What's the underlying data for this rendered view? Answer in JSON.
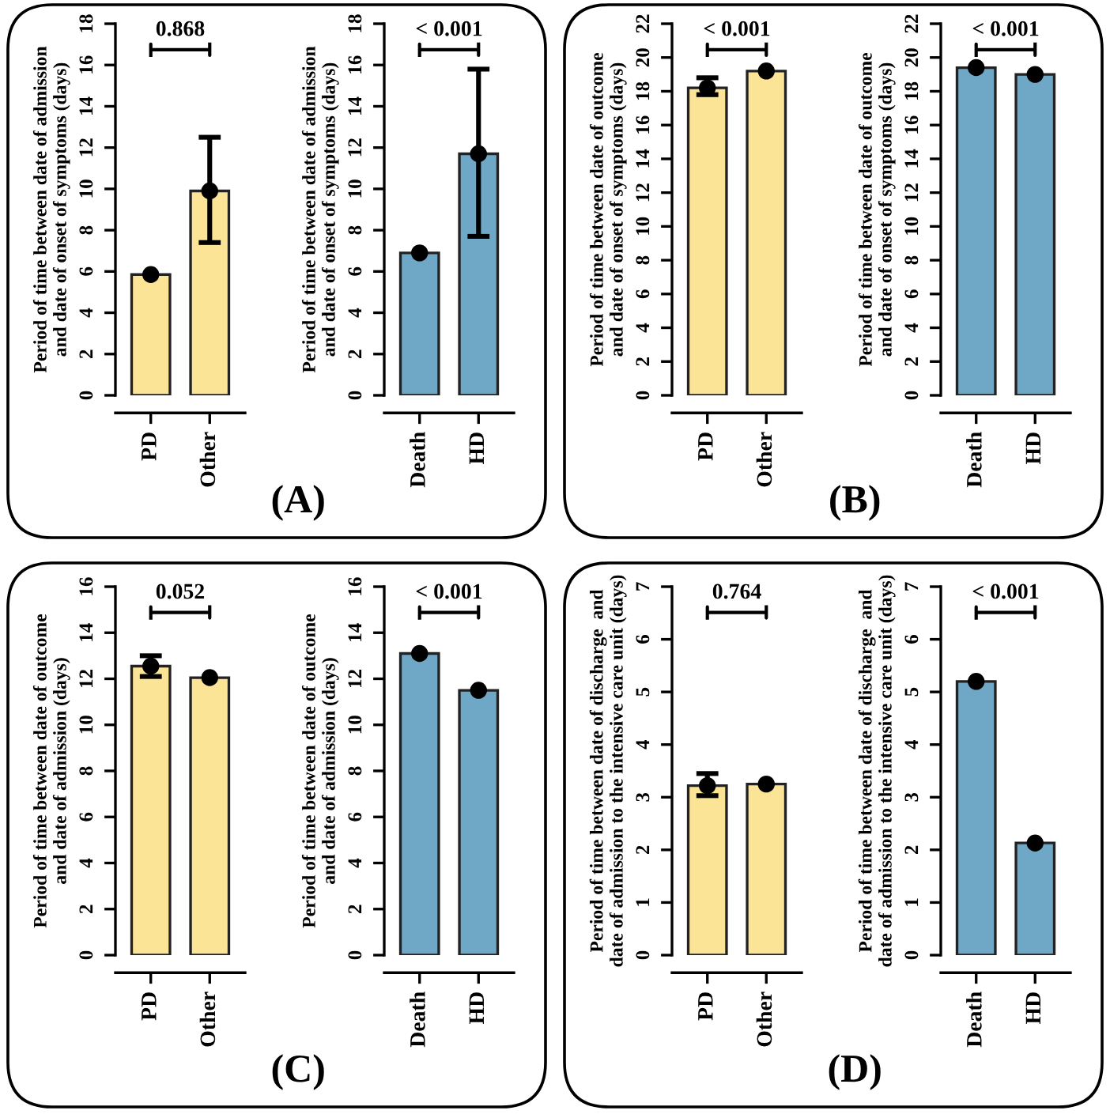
{
  "chart_data": [
    {
      "type": "bar",
      "categories": [
        "PD",
        "Other"
      ],
      "ylabel": "Period of time between date of admission\nand date of onset of symptoms (days)",
      "ylim": [
        0,
        18
      ],
      "yticks": [
        0,
        2,
        4,
        6,
        8,
        10,
        12,
        14,
        16,
        18
      ],
      "annotations": [
        "0.868",
        "(A)"
      ],
      "series": [
        {
          "color": "#fce497",
          "values": [
            5.85,
            9.9
          ],
          "errors": [
            null,
            [
              7.4,
              12.5
            ]
          ]
        },
        {
          "type": "scatter",
          "x": [
            "PD",
            "Other"
          ],
          "color": "#000000",
          "marker": "circle",
          "values": [
            5.85,
            9.9
          ]
        }
      ]
    },
    {
      "type": "bar",
      "categories": [
        "Death",
        "HD"
      ],
      "ylabel": "Period of time between date of admission\nand date of onset of symptoms (days)",
      "ylim": [
        0,
        18
      ],
      "yticks": [
        0,
        2,
        4,
        6,
        8,
        10,
        12,
        14,
        16,
        18
      ],
      "annotations": [
        "< 0.001"
      ],
      "series": [
        {
          "color": "#6fa8c6",
          "values": [
            6.9,
            11.7
          ],
          "errors": [
            null,
            [
              7.7,
              15.8
            ]
          ]
        },
        {
          "type": "scatter",
          "x": [
            "Death",
            "HD"
          ],
          "color": "#000000",
          "marker": "circle",
          "values": [
            6.9,
            11.7
          ]
        }
      ]
    },
    {
      "type": "bar",
      "categories": [
        "PD",
        "Other"
      ],
      "ylabel": "Period of time between date of outcome\nand date of onset of symptoms (days)",
      "ylim": [
        0,
        22
      ],
      "yticks": [
        0,
        2,
        4,
        6,
        8,
        10,
        12,
        14,
        16,
        18,
        20,
        22
      ],
      "annotations": [
        "< 0.001",
        "(B)"
      ],
      "series": [
        {
          "color": "#fce497",
          "values": [
            18.2,
            19.2
          ],
          "errors": [
            [
              17.8,
              18.8
            ],
            null
          ]
        },
        {
          "type": "scatter",
          "x": [
            "PD",
            "Other"
          ],
          "color": "#000000",
          "marker": "circle",
          "values": [
            18.2,
            19.2
          ]
        }
      ]
    },
    {
      "type": "bar",
      "categories": [
        "Death",
        "HD"
      ],
      "ylabel": "Period of time between date of outcome\nand date of onset of symptoms (days)",
      "ylim": [
        0,
        22
      ],
      "yticks": [
        0,
        2,
        4,
        6,
        8,
        10,
        12,
        14,
        16,
        18,
        20,
        22
      ],
      "annotations": [
        "< 0.001"
      ],
      "series": [
        {
          "color": "#6fa8c6",
          "values": [
            19.4,
            19.0
          ]
        },
        {
          "type": "scatter",
          "x": [
            "Death",
            "HD"
          ],
          "color": "#000000",
          "marker": "circle",
          "values": [
            19.4,
            19.0
          ]
        }
      ]
    },
    {
      "type": "bar",
      "categories": [
        "PD",
        "Other"
      ],
      "ylabel": "Period of time between date of outcome\nand date of admission (days)",
      "ylim": [
        0,
        16
      ],
      "yticks": [
        0,
        2,
        4,
        6,
        8,
        10,
        12,
        14,
        16
      ],
      "annotations": [
        "0.052",
        "(C)"
      ],
      "series": [
        {
          "color": "#fce497",
          "values": [
            12.55,
            12.05
          ],
          "errors": [
            [
              12.1,
              13.0
            ],
            null
          ]
        },
        {
          "type": "scatter",
          "x": [
            "PD",
            "Other"
          ],
          "color": "#000000",
          "marker": "circle",
          "values": [
            12.55,
            12.05
          ]
        }
      ]
    },
    {
      "type": "bar",
      "categories": [
        "Death",
        "HD"
      ],
      "ylabel": "Period of time between date of outcome\nand date of admission (days)",
      "ylim": [
        0,
        16
      ],
      "yticks": [
        0,
        2,
        4,
        6,
        8,
        10,
        12,
        14,
        16
      ],
      "annotations": [
        "< 0.001"
      ],
      "series": [
        {
          "color": "#6fa8c6",
          "values": [
            13.1,
            11.5
          ]
        },
        {
          "type": "scatter",
          "x": [
            "Death",
            "HD"
          ],
          "color": "#000000",
          "marker": "circle",
          "values": [
            13.1,
            11.5
          ]
        }
      ]
    },
    {
      "type": "bar",
      "categories": [
        "PD",
        "Other"
      ],
      "ylabel": "Period of time between date of discharge  and\ndate of admission to the intensive care unit (days)",
      "ylim": [
        0,
        7
      ],
      "yticks": [
        0,
        1,
        2,
        3,
        4,
        5,
        6,
        7
      ],
      "annotations": [
        "0.764",
        "(D)"
      ],
      "series": [
        {
          "color": "#fce497",
          "values": [
            3.22,
            3.25
          ],
          "errors": [
            [
              3.03,
              3.45
            ],
            null
          ]
        },
        {
          "type": "scatter",
          "x": [
            "PD",
            "Other"
          ],
          "color": "#000000",
          "marker": "circle",
          "values": [
            3.22,
            3.25
          ]
        }
      ]
    },
    {
      "type": "bar",
      "categories": [
        "Death",
        "HD"
      ],
      "ylabel": "Period of time between date of discharge  and\ndate of admission to the intensive care unit (days)",
      "ylim": [
        0,
        7
      ],
      "yticks": [
        0,
        1,
        2,
        3,
        4,
        5,
        6,
        7
      ],
      "annotations": [
        "< 0.001"
      ],
      "series": [
        {
          "color": "#6fa8c6",
          "values": [
            5.2,
            2.13
          ]
        },
        {
          "type": "scatter",
          "x": [
            "Death",
            "HD"
          ],
          "color": "#000000",
          "marker": "circle",
          "values": [
            5.2,
            2.13
          ]
        }
      ]
    }
  ]
}
